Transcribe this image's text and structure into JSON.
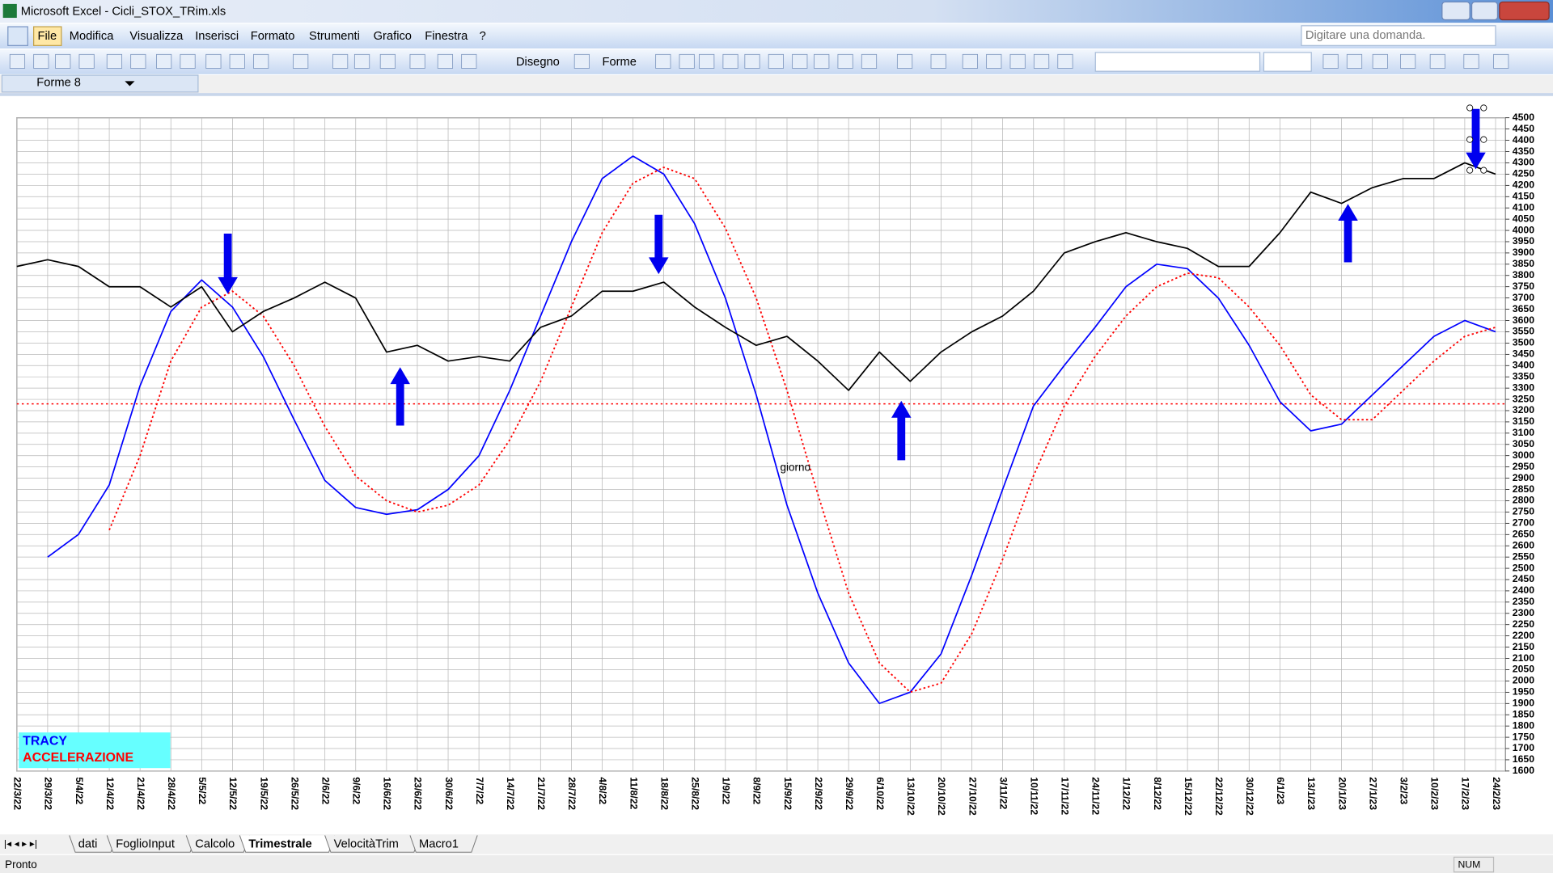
{
  "window": {
    "title": "Microsoft Excel - Cicli_STOX_TRim.xls"
  },
  "menu": [
    "File",
    "Modifica",
    "Visualizza",
    "Inserisci",
    "Formato",
    "Strumenti",
    "Grafico",
    "Finestra",
    "?"
  ],
  "help_box": "Digitare una domanda.",
  "toolbar": {
    "draw": "Disegno",
    "shapes": "Forme"
  },
  "name_box": "Forme 8",
  "sheet_tabs": [
    "dati",
    "FoglioInput",
    "Calcolo",
    "Trimestrale",
    "VelocitàTrim",
    "Macro1"
  ],
  "active_tab": 3,
  "status": {
    "left": "Pronto",
    "right": "NUM"
  },
  "chart_data": {
    "type": "line",
    "x_label": "giorno",
    "categories": [
      "22/3/22",
      "29/3/22",
      "5/4/22",
      "12/4/22",
      "21/4/22",
      "28/4/22",
      "5/5/22",
      "12/5/22",
      "19/5/22",
      "26/5/22",
      "2/6/22",
      "9/6/22",
      "16/6/22",
      "23/6/22",
      "30/6/22",
      "7/7/22",
      "14/7/22",
      "21/7/22",
      "28/7/22",
      "4/8/22",
      "11/8/22",
      "18/8/22",
      "25/8/22",
      "1/9/22",
      "8/9/22",
      "15/9/22",
      "22/9/22",
      "29/9/22",
      "6/10/22",
      "13/10/22",
      "20/10/22",
      "27/10/22",
      "3/11/22",
      "10/11/22",
      "17/11/22",
      "24/11/22",
      "1/12/22",
      "8/12/22",
      "15/12/22",
      "22/12/22",
      "30/12/22",
      "6/1/23",
      "13/1/23",
      "20/1/23",
      "27/1/23",
      "3/2/23",
      "10/2/23",
      "17/2/23",
      "24/2/23"
    ],
    "black_line": {
      "color": "#000000",
      "values": [
        3840,
        3870,
        3840,
        3750,
        3750,
        3660,
        3750,
        3550,
        3640,
        3700,
        3770,
        3700,
        3460,
        3490,
        3420,
        3440,
        3420,
        3570,
        3620,
        3730,
        3730,
        3770,
        3660,
        3570,
        3490,
        3530,
        3420,
        3290,
        3460,
        3330,
        3460,
        3550,
        3620,
        3730,
        3900,
        3950,
        3990,
        3950,
        3920,
        3840,
        3840,
        3990,
        4170,
        4120,
        4190,
        4230,
        4230,
        4300,
        4250
      ]
    },
    "series": [
      {
        "name": "TRACY",
        "color": "#0000ff",
        "dashed": false,
        "values": [
          null,
          2550,
          2650,
          2870,
          3310,
          3640,
          3780,
          3660,
          3440,
          3160,
          2890,
          2770,
          2740,
          2760,
          2850,
          3000,
          3290,
          3620,
          3950,
          4230,
          4330,
          4250,
          4030,
          3700,
          3270,
          2780,
          2390,
          2080,
          1900,
          1950,
          2120,
          2470,
          2850,
          3220,
          3400,
          3570,
          3750,
          3850,
          3830,
          3700,
          3490,
          3240,
          3110,
          3140,
          3270,
          3400,
          3530,
          3600,
          3550
        ]
      },
      {
        "name": "ACCELERAZIONE",
        "color": "#ff0000",
        "dashed": true,
        "values": [
          null,
          null,
          null,
          2670,
          3000,
          3420,
          3660,
          3730,
          3620,
          3400,
          3130,
          2910,
          2800,
          2750,
          2780,
          2870,
          3070,
          3330,
          3660,
          3990,
          4210,
          4280,
          4230,
          4010,
          3700,
          3290,
          2830,
          2390,
          2080,
          1950,
          1990,
          2210,
          2540,
          2910,
          3220,
          3440,
          3620,
          3750,
          3810,
          3790,
          3660,
          3490,
          3270,
          3160,
          3160,
          3290,
          3420,
          3530,
          3570
        ]
      }
    ],
    "hline": {
      "value": 3230,
      "color": "#ff0000"
    },
    "ylim": [
      1600,
      4500
    ],
    "yticks": [
      1600,
      1650,
      1700,
      1750,
      1800,
      1850,
      1900,
      1950,
      2000,
      2050,
      2100,
      2150,
      2200,
      2250,
      2300,
      2350,
      2400,
      2450,
      2500,
      2550,
      2600,
      2650,
      2700,
      2750,
      2800,
      2850,
      2900,
      2950,
      3000,
      3050,
      3100,
      3150,
      3200,
      3250,
      3300,
      3350,
      3400,
      3450,
      3500,
      3550,
      3600,
      3650,
      3700,
      3750,
      3800,
      3850,
      3900,
      3950,
      4000,
      4050,
      4100,
      4150,
      4200,
      4250,
      4300,
      4350,
      4400,
      4450,
      4500
    ],
    "grid": true,
    "legend": "bottom-left"
  }
}
